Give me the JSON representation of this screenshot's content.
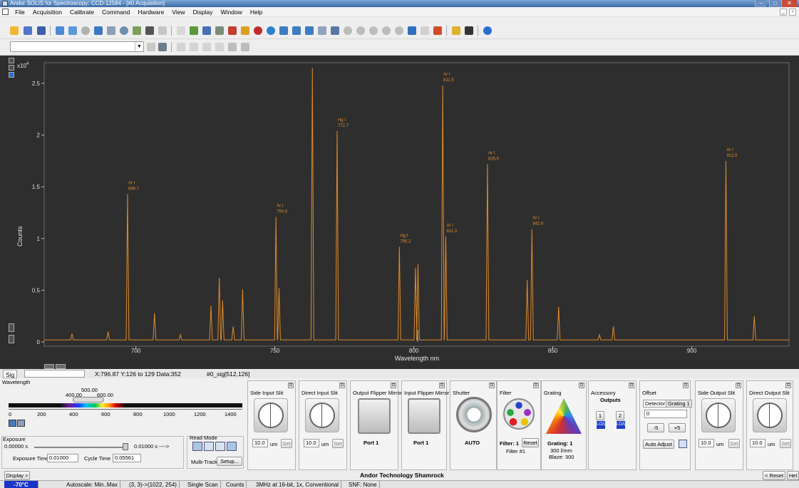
{
  "window": {
    "title": "Andor SOLIS for Spectroscopy: CCD-12584 - [#0  Acquisition]"
  },
  "menu": [
    "File",
    "Acquisition",
    "Calibrate",
    "Command",
    "Hardware",
    "View",
    "Display",
    "Window",
    "Help"
  ],
  "toolbar": {
    "combo_value": ""
  },
  "chart_data": {
    "type": "line",
    "xlabel": "Wavelength nm",
    "ylabel": "Counts",
    "y_multiplier": "x10",
    "y_exponent": "4",
    "xlim": [
      667,
      935
    ],
    "ylim": [
      0,
      27000
    ],
    "x_ticks": [
      "700",
      "750",
      "800",
      "850",
      "900"
    ],
    "y_ticks": [
      "0",
      "0.5",
      "1",
      "1.5",
      "2",
      "2.5"
    ],
    "line_color": "#e08a2a",
    "background": "#2e2e2e",
    "grid": false,
    "series": [
      {
        "x": [
          667,
          677,
          690,
          697,
          706.7,
          716,
          727,
          730,
          731.2,
          735,
          738.4,
          750.4,
          751.5,
          763.5,
          772.4,
          794.8,
          800.6,
          801.5,
          810.4,
          811.5,
          826.5,
          840.8,
          842.5,
          852.1,
          866.8,
          871.8,
          888,
          912.3,
          922.5,
          935
        ],
        "values": [
          200,
          800,
          1000,
          14300,
          2800,
          700,
          3500,
          6200,
          4000,
          1500,
          5100,
          12100,
          5200,
          26500,
          20400,
          9200,
          7200,
          7500,
          24800,
          10200,
          17200,
          6000,
          10900,
          3400,
          700,
          1500,
          200,
          17500,
          2500,
          200
        ]
      }
    ],
    "peak_labels": [
      {
        "x": 697,
        "y": 14300,
        "line1": "Ar I",
        "line2": "696.7"
      },
      {
        "x": 750.4,
        "y": 12100,
        "line1": "Ar I",
        "line2": "750.6"
      },
      {
        "x": 772.4,
        "y": 20400,
        "line1": "Hg I",
        "line2": "772.7"
      },
      {
        "x": 794.8,
        "y": 9200,
        "line1": "Hg I",
        "line2": "795.2"
      },
      {
        "x": 810.4,
        "y": 24800,
        "line1": "Ar I",
        "line2": "811.5"
      },
      {
        "x": 811.5,
        "y": 10200,
        "line1": "Ar I",
        "line2": "811.3"
      },
      {
        "x": 826.5,
        "y": 17200,
        "line1": "Ar I",
        "line2": "826.5"
      },
      {
        "x": 842.5,
        "y": 10900,
        "line1": "Ar I",
        "line2": "842.6"
      },
      {
        "x": 912.3,
        "y": 17500,
        "line1": "Ar I",
        "line2": "912.5"
      }
    ]
  },
  "status": {
    "sig_tab": "Sig",
    "readout": "X:796.87  Y:126 to 129 Data:352",
    "signal_name": "#0_sig[512,126]"
  },
  "wavelength": {
    "title": "Wavelength",
    "center": "500.00",
    "low": "400.00",
    "high": "600.00",
    "scale": [
      "0",
      "200",
      "400",
      "600",
      "800",
      "1000",
      "1200",
      "1400"
    ]
  },
  "exposure": {
    "title": "Exposure",
    "min": "0.00000 s",
    "max": "0.01000 s ---->",
    "exposure_label": "Exposure Time",
    "exposure_value": "0.01000",
    "cycle_label": "Cycle Time",
    "cycle_value": "0.05561"
  },
  "read_mode": {
    "title": "Read Mode",
    "multitrack": "Multi-Track",
    "setup": "Setup..."
  },
  "panels": {
    "side_input_slit": {
      "title": "Side Input Slit",
      "value": "10.0",
      "unit": "um",
      "set": "Set"
    },
    "direct_input_slit": {
      "title": "Direct Input Slit",
      "value": "10.0",
      "unit": "um",
      "set": "Set"
    },
    "output_flipper": {
      "title": "Output Flipper Mirror",
      "port": "Port 1"
    },
    "input_flipper": {
      "title": "Input Flipper Mirror",
      "port": "Port 1"
    },
    "shutter": {
      "title": "Shutter",
      "mode": "AUTO"
    },
    "filter": {
      "title": "Filter",
      "filter": "Filter: 1",
      "reset": "Reset",
      "name": "Filter #1"
    },
    "grating": {
      "title": "Grating",
      "grating": "Grating: 1",
      "lines": "300 l/mm",
      "blaze": "Blaze: 300"
    },
    "accessory": {
      "title": "Accessory",
      "outputs": "Outputs",
      "out1": "1",
      "out2": "2",
      "lo1": "LO/L",
      "lo2": "LO/L"
    },
    "offset": {
      "title": "Offset",
      "tab1": "Detector",
      "tab2": "Grating 1",
      "value": "0",
      "minus": "-5",
      "plus": "+5",
      "auto": "Auto Adjust"
    },
    "side_output_slit": {
      "title": "Side Output Slit",
      "value": "10.0",
      "unit": "um",
      "set": "Set"
    },
    "direct_output_slit": {
      "title": "Direct Output Slit",
      "value": "10.0",
      "unit": "um",
      "set": "Set"
    }
  },
  "footer": {
    "display": "Display >",
    "company": "Andor Technology Shamrock",
    "reset": "< Reset",
    "help": "Hel"
  },
  "bottom": {
    "temp": "-70°C",
    "autoscale": "Autoscale: Min..Max",
    "region": "(3, 3)->(1022, 254)",
    "scan": "Single Scan",
    "counts": "Counts",
    "adc": "3MHz at 16-bit, 1x, Conventional",
    "snf": "SNF: None"
  }
}
